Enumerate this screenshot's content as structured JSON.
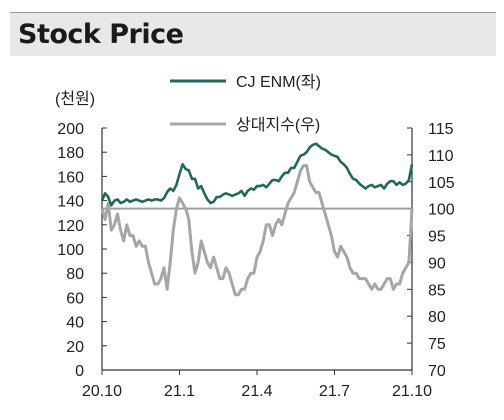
{
  "header": {
    "title": "Stock Price"
  },
  "chart_data": {
    "type": "line",
    "title": "",
    "left_axis": {
      "unit_label": "(천원)",
      "ylim": [
        0,
        200
      ],
      "ticks": [
        0,
        20,
        40,
        60,
        80,
        100,
        120,
        140,
        160,
        180,
        200
      ]
    },
    "right_axis": {
      "ylim": [
        70,
        115
      ],
      "ticks": [
        70,
        75,
        80,
        85,
        90,
        95,
        100,
        105,
        110,
        115
      ]
    },
    "x_ticks": [
      "20.10",
      "21.1",
      "21.4",
      "21.7",
      "21.10"
    ],
    "x_range": [
      "2020-10",
      "2021-10"
    ],
    "reference_line": {
      "axis": "right",
      "value": 100,
      "color": "#9e9e9e"
    },
    "legend_placement": "top",
    "grid": false,
    "series": [
      {
        "name": "CJ ENM(좌)",
        "axis": "left",
        "color": "#1f6b57",
        "x": [
          0,
          0.01,
          0.02,
          0.03,
          0.04,
          0.05,
          0.06,
          0.07,
          0.08,
          0.09,
          0.1,
          0.11,
          0.12,
          0.13,
          0.14,
          0.15,
          0.16,
          0.17,
          0.18,
          0.19,
          0.2,
          0.21,
          0.22,
          0.23,
          0.24,
          0.25,
          0.26,
          0.27,
          0.28,
          0.29,
          0.3,
          0.31,
          0.32,
          0.33,
          0.34,
          0.35,
          0.36,
          0.37,
          0.38,
          0.39,
          0.4,
          0.41,
          0.42,
          0.43,
          0.44,
          0.45,
          0.46,
          0.47,
          0.48,
          0.49,
          0.5,
          0.51,
          0.52,
          0.53,
          0.54,
          0.55,
          0.56,
          0.57,
          0.58,
          0.59,
          0.6,
          0.61,
          0.62,
          0.63,
          0.64,
          0.65,
          0.66,
          0.67,
          0.68,
          0.69,
          0.7,
          0.71,
          0.72,
          0.73,
          0.74,
          0.75,
          0.76,
          0.77,
          0.78,
          0.79,
          0.8,
          0.81,
          0.82,
          0.83,
          0.84,
          0.85,
          0.86,
          0.87,
          0.88,
          0.89,
          0.9,
          0.91,
          0.92,
          0.93,
          0.94,
          0.95,
          0.96,
          0.97,
          0.98,
          0.99,
          1.0
        ],
        "values": [
          140,
          146,
          143,
          136,
          140,
          141,
          138,
          139,
          141,
          139,
          140,
          141,
          140,
          139,
          140,
          141,
          140,
          141,
          141,
          140,
          142,
          147,
          150,
          148,
          153,
          162,
          170,
          166,
          165,
          158,
          158,
          150,
          152,
          146,
          141,
          138,
          139,
          143,
          143,
          145,
          146,
          145,
          144,
          145,
          146,
          148,
          144,
          148,
          150,
          149,
          152,
          152,
          153,
          151,
          154,
          157,
          157,
          156,
          160,
          163,
          163,
          167,
          167,
          172,
          177,
          178,
          180,
          184,
          186,
          187,
          185,
          183,
          182,
          180,
          178,
          177,
          176,
          172,
          170,
          167,
          162,
          158,
          157,
          154,
          152,
          150,
          152,
          153,
          151,
          152,
          153,
          150,
          154,
          156,
          156,
          153,
          155,
          153,
          154,
          157,
          170
        ]
      },
      {
        "name": "상대지수(우)",
        "axis": "right",
        "color": "#a6a6a6",
        "x": [
          0,
          0.01,
          0.02,
          0.03,
          0.04,
          0.05,
          0.06,
          0.07,
          0.08,
          0.09,
          0.1,
          0.11,
          0.12,
          0.13,
          0.14,
          0.15,
          0.16,
          0.17,
          0.18,
          0.19,
          0.2,
          0.21,
          0.22,
          0.23,
          0.24,
          0.25,
          0.26,
          0.27,
          0.28,
          0.29,
          0.3,
          0.31,
          0.32,
          0.33,
          0.34,
          0.35,
          0.36,
          0.37,
          0.38,
          0.39,
          0.4,
          0.41,
          0.42,
          0.43,
          0.44,
          0.45,
          0.46,
          0.47,
          0.48,
          0.49,
          0.5,
          0.51,
          0.52,
          0.53,
          0.54,
          0.55,
          0.56,
          0.57,
          0.58,
          0.59,
          0.6,
          0.61,
          0.62,
          0.63,
          0.64,
          0.65,
          0.66,
          0.67,
          0.68,
          0.69,
          0.7,
          0.71,
          0.72,
          0.73,
          0.74,
          0.75,
          0.76,
          0.77,
          0.78,
          0.79,
          0.8,
          0.81,
          0.82,
          0.83,
          0.84,
          0.85,
          0.86,
          0.87,
          0.88,
          0.89,
          0.9,
          0.91,
          0.92,
          0.93,
          0.94,
          0.95,
          0.96,
          0.97,
          0.98,
          0.99,
          1.0
        ],
        "values": [
          100,
          98,
          101,
          96,
          97,
          99,
          96,
          94,
          97,
          95,
          95,
          93,
          94,
          93,
          93,
          90,
          88,
          86,
          86,
          87,
          89,
          85,
          90,
          96,
          100,
          102,
          101,
          100,
          98,
          92,
          88,
          90,
          94,
          92,
          90,
          89,
          91,
          89,
          87,
          87,
          89,
          88,
          86,
          84,
          84,
          85,
          85,
          87,
          88,
          88,
          91,
          92,
          94,
          97,
          97,
          95,
          97,
          98,
          97,
          99,
          101,
          102,
          103,
          105,
          107,
          108,
          108,
          105,
          104,
          103,
          103,
          101,
          99,
          97,
          95,
          92,
          91,
          93,
          92,
          91,
          89,
          88,
          88,
          87,
          87,
          87,
          86,
          85,
          86,
          85,
          85,
          86,
          87,
          87,
          85,
          86,
          86,
          88,
          89,
          90,
          100
        ]
      }
    ]
  }
}
